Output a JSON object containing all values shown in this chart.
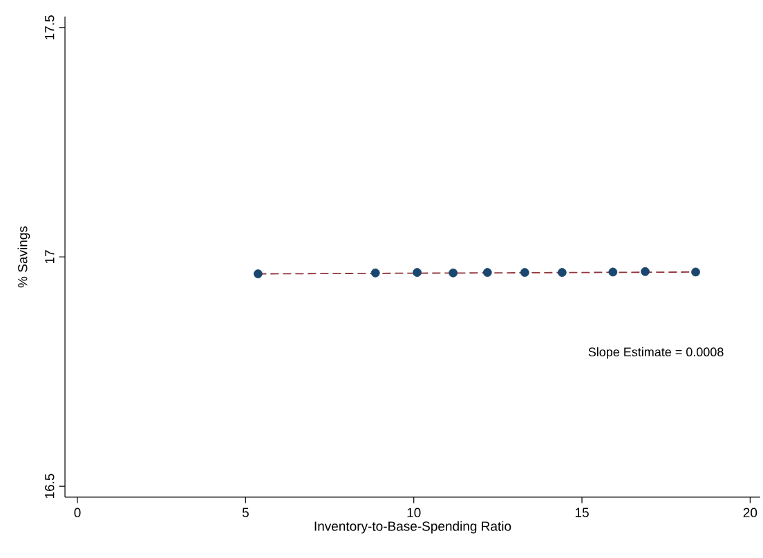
{
  "chart_data": {
    "type": "scatter",
    "xlabel": "Inventory-to-Base-Spending Ratio",
    "ylabel": "% Savings",
    "xlim": [
      -0.37,
      20.3
    ],
    "ylim": [
      16.476,
      17.524
    ],
    "xticks": [
      0,
      5,
      10,
      15,
      20
    ],
    "yticks": [
      16.5,
      17,
      17.5
    ],
    "grid": false,
    "annotations": [
      "Slope Estimate = 0.0008"
    ],
    "series": [
      {
        "marker": "circle",
        "color": "#1a476f",
        "x": [
          5.37,
          8.86,
          10.1,
          11.17,
          12.19,
          13.3,
          14.41,
          15.92,
          16.88,
          18.38
        ],
        "values": [
          16.963,
          16.965,
          16.966,
          16.965,
          16.966,
          16.966,
          16.966,
          16.967,
          16.968,
          16.967
        ]
      },
      {
        "type": "line",
        "marker": "none",
        "line_style": "dashed",
        "color": "#90353b",
        "x": [
          5.37,
          18.38
        ],
        "values": [
          16.963,
          16.967
        ]
      }
    ]
  }
}
